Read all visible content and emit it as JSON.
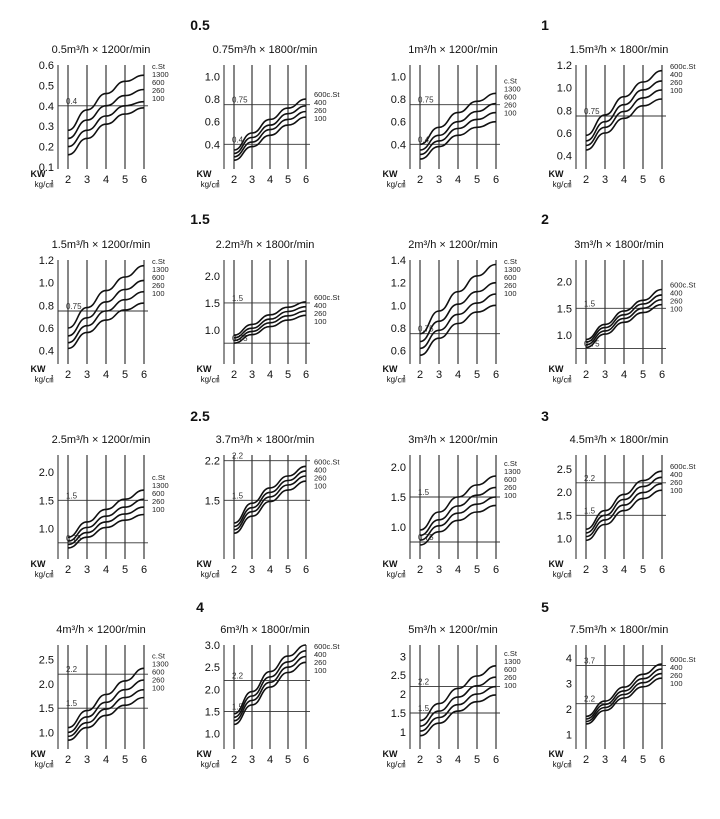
{
  "charts_sheet": {
    "kw_label": "KW",
    "pressure_unit": "kg/㎠"
  },
  "chart_data": [
    {
      "group": "0.5",
      "type": "line",
      "title": "0.5m³/h × 1200r/min",
      "x": [
        2,
        3,
        4,
        5,
        6
      ],
      "ylim": [
        0.1,
        0.6
      ],
      "yticks": [
        "0.1",
        "0.2",
        "0.3",
        "0.4",
        "0.5",
        "0.6"
      ],
      "ref_lines": [
        0.4
      ],
      "ref_labels": [
        "0.4"
      ],
      "series_labels": [
        "c.St",
        "1300",
        "600",
        "260",
        "100"
      ],
      "series": [
        {
          "name": "1300",
          "values": [
            0.28,
            0.38,
            0.46,
            0.52,
            0.55
          ]
        },
        {
          "name": "600",
          "values": [
            0.24,
            0.33,
            0.4,
            0.45,
            0.48
          ]
        },
        {
          "name": "260",
          "values": [
            0.2,
            0.28,
            0.35,
            0.4,
            0.42
          ]
        },
        {
          "name": "100",
          "values": [
            0.16,
            0.24,
            0.31,
            0.36,
            0.39
          ]
        }
      ]
    },
    {
      "group": "0.5",
      "type": "line",
      "title": "0.75m³/h × 1800r/min",
      "x": [
        2,
        3,
        4,
        5,
        6
      ],
      "ylim": [
        0.2,
        1.1
      ],
      "yticks": [
        "",
        "0.4",
        "0.6",
        "0.8",
        "1.0"
      ],
      "ref_lines": [
        0.75,
        0.4
      ],
      "ref_labels": [
        "0.75",
        "0.4"
      ],
      "series_labels": [
        "600c.St",
        "400",
        "260",
        "100"
      ],
      "series": [
        {
          "name": "600",
          "values": [
            0.35,
            0.5,
            0.62,
            0.72,
            0.8
          ]
        },
        {
          "name": "400",
          "values": [
            0.32,
            0.46,
            0.57,
            0.67,
            0.74
          ]
        },
        {
          "name": "260",
          "values": [
            0.29,
            0.42,
            0.53,
            0.62,
            0.69
          ]
        },
        {
          "name": "100",
          "values": [
            0.26,
            0.38,
            0.48,
            0.57,
            0.64
          ]
        }
      ]
    },
    {
      "group": "1",
      "type": "line",
      "title": "1m³/h × 1200r/min",
      "x": [
        2,
        3,
        4,
        5,
        6
      ],
      "ylim": [
        0.2,
        1.1
      ],
      "yticks": [
        "0.4",
        "0.6",
        "0.8",
        "1.0"
      ],
      "ref_lines": [
        0.75,
        0.4
      ],
      "ref_labels": [
        "0.75",
        "0.4"
      ],
      "series_labels": [
        "c.St",
        "1300",
        "600",
        "260",
        "100"
      ],
      "series": [
        {
          "name": "1300",
          "values": [
            0.4,
            0.55,
            0.68,
            0.78,
            0.85
          ]
        },
        {
          "name": "600",
          "values": [
            0.35,
            0.48,
            0.6,
            0.69,
            0.76
          ]
        },
        {
          "name": "260",
          "values": [
            0.31,
            0.43,
            0.54,
            0.62,
            0.68
          ]
        },
        {
          "name": "100",
          "values": [
            0.27,
            0.38,
            0.48,
            0.55,
            0.6
          ]
        }
      ]
    },
    {
      "group": "1",
      "type": "line",
      "title": "1.5m³/h × 1800r/min",
      "x": [
        2,
        3,
        4,
        5,
        6
      ],
      "ylim": [
        0.3,
        1.2
      ],
      "yticks": [
        "0.4",
        "0.6",
        "0.8",
        "1.0",
        "1.2"
      ],
      "ref_lines": [
        0.75
      ],
      "ref_labels": [
        "0.75"
      ],
      "series_labels": [
        "600c.St",
        "400",
        "260",
        "100"
      ],
      "series": [
        {
          "name": "600",
          "values": [
            0.58,
            0.76,
            0.92,
            1.05,
            1.15
          ]
        },
        {
          "name": "400",
          "values": [
            0.53,
            0.7,
            0.85,
            0.98,
            1.06
          ]
        },
        {
          "name": "260",
          "values": [
            0.49,
            0.65,
            0.79,
            0.91,
            0.98
          ]
        },
        {
          "name": "100",
          "values": [
            0.45,
            0.6,
            0.73,
            0.84,
            0.9
          ]
        }
      ]
    },
    {
      "group": "1.5",
      "type": "line",
      "title": "1.5m³/h × 1200r/min",
      "x": [
        2,
        3,
        4,
        5,
        6
      ],
      "ylim": [
        0.3,
        1.2
      ],
      "yticks": [
        "0.4",
        "0.6",
        "0.8",
        "1.0",
        "1.2"
      ],
      "ref_lines": [
        0.75
      ],
      "ref_labels": [
        "0.75"
      ],
      "series_labels": [
        "c.St",
        "1300",
        "600",
        "260",
        "100"
      ],
      "series": [
        {
          "name": "1300",
          "values": [
            0.6,
            0.78,
            0.93,
            1.05,
            1.15
          ]
        },
        {
          "name": "600",
          "values": [
            0.53,
            0.69,
            0.83,
            0.94,
            1.02
          ]
        },
        {
          "name": "260",
          "values": [
            0.47,
            0.62,
            0.75,
            0.85,
            0.92
          ]
        },
        {
          "name": "100",
          "values": [
            0.42,
            0.56,
            0.67,
            0.76,
            0.82
          ]
        }
      ]
    },
    {
      "group": "1.5",
      "type": "line",
      "title": "2.2m³/h × 1800r/min",
      "x": [
        2,
        3,
        4,
        5,
        6
      ],
      "ylim": [
        0.4,
        2.3
      ],
      "yticks": [
        "1.0",
        "1.5",
        "2.0"
      ],
      "ref_lines": [
        1.5,
        0.75
      ],
      "ref_labels": [
        "1.5",
        "0.75"
      ],
      "series_labels": [
        "600c.St",
        "400",
        "260",
        "100"
      ],
      "series": [
        {
          "name": "600",
          "values": [
            0.9,
            1.1,
            1.28,
            1.42,
            1.52
          ]
        },
        {
          "name": "400",
          "values": [
            0.85,
            1.03,
            1.2,
            1.34,
            1.43
          ]
        },
        {
          "name": "260",
          "values": [
            0.8,
            0.97,
            1.13,
            1.26,
            1.35
          ]
        },
        {
          "name": "100",
          "values": [
            0.75,
            0.91,
            1.06,
            1.18,
            1.27
          ]
        }
      ]
    },
    {
      "group": "2",
      "type": "line",
      "title": "2m³/h × 1200r/min",
      "x": [
        2,
        3,
        4,
        5,
        6
      ],
      "ylim": [
        0.5,
        1.4
      ],
      "yticks": [
        "0.6",
        "0.8",
        "1.0",
        "1.2",
        "1.4"
      ],
      "ref_lines": [
        0.75
      ],
      "ref_labels": [
        "0.75"
      ],
      "series_labels": [
        "c.St",
        "1300",
        "600",
        "260",
        "100"
      ],
      "series": [
        {
          "name": "1300",
          "values": [
            0.75,
            0.95,
            1.12,
            1.26,
            1.36
          ]
        },
        {
          "name": "600",
          "values": [
            0.68,
            0.86,
            1.01,
            1.12,
            1.2
          ]
        },
        {
          "name": "260",
          "values": [
            0.62,
            0.78,
            0.92,
            1.02,
            1.1
          ]
        },
        {
          "name": "100",
          "values": [
            0.56,
            0.71,
            0.84,
            0.94,
            1.0
          ]
        }
      ]
    },
    {
      "group": "2",
      "type": "line",
      "title": "3m³/h × 1800r/min",
      "x": [
        2,
        3,
        4,
        5,
        6
      ],
      "ylim": [
        0.5,
        2.4
      ],
      "yticks": [
        "1.0",
        "1.5",
        "2.0"
      ],
      "ref_lines": [
        1.5,
        0.75
      ],
      "ref_labels": [
        "1.5",
        "0.75"
      ],
      "series_labels": [
        "600c.St",
        "400",
        "260",
        "100"
      ],
      "series": [
        {
          "name": "600",
          "values": [
            0.92,
            1.2,
            1.45,
            1.65,
            1.85
          ]
        },
        {
          "name": "400",
          "values": [
            0.87,
            1.14,
            1.38,
            1.58,
            1.75
          ]
        },
        {
          "name": "260",
          "values": [
            0.82,
            1.08,
            1.31,
            1.5,
            1.66
          ]
        },
        {
          "name": "100",
          "values": [
            0.77,
            1.02,
            1.24,
            1.42,
            1.57
          ]
        }
      ]
    },
    {
      "group": "2.5",
      "type": "line",
      "title": "2.5m³/h × 1200r/min",
      "x": [
        2,
        3,
        4,
        5,
        6
      ],
      "ylim": [
        0.5,
        2.3
      ],
      "yticks": [
        "1.0",
        "1.5",
        "2.0"
      ],
      "ref_lines": [
        1.5,
        0.75
      ],
      "ref_labels": [
        "1.5",
        "0.75"
      ],
      "series_labels": [
        "c.St",
        "1300",
        "600",
        "260",
        "100"
      ],
      "series": [
        {
          "name": "1300",
          "values": [
            0.85,
            1.12,
            1.34,
            1.52,
            1.68
          ]
        },
        {
          "name": "600",
          "values": [
            0.78,
            1.02,
            1.22,
            1.38,
            1.52
          ]
        },
        {
          "name": "260",
          "values": [
            0.72,
            0.93,
            1.12,
            1.26,
            1.38
          ]
        },
        {
          "name": "100",
          "values": [
            0.66,
            0.85,
            1.02,
            1.15,
            1.25
          ]
        }
      ]
    },
    {
      "group": "2.5",
      "type": "line",
      "title": "3.7m³/h × 1800r/min",
      "x": [
        2,
        3,
        4,
        5,
        6
      ],
      "ylim": [
        0.5,
        2.3
      ],
      "yticks": [
        "1.5",
        "2.2"
      ],
      "ref_lines": [
        2.2,
        1.5
      ],
      "ref_labels": [
        "2.2",
        "1.5"
      ],
      "series_labels": [
        "600c.St",
        "400",
        "260",
        "100"
      ],
      "series": [
        {
          "name": "600",
          "values": [
            1.1,
            1.45,
            1.72,
            1.93,
            2.1
          ]
        },
        {
          "name": "400",
          "values": [
            1.04,
            1.37,
            1.64,
            1.85,
            2.02
          ]
        },
        {
          "name": "260",
          "values": [
            0.98,
            1.3,
            1.56,
            1.77,
            1.93
          ]
        },
        {
          "name": "100",
          "values": [
            0.92,
            1.22,
            1.48,
            1.68,
            1.84
          ]
        }
      ]
    },
    {
      "group": "3",
      "type": "line",
      "title": "3m³/h × 1200r/min",
      "x": [
        2,
        3,
        4,
        5,
        6
      ],
      "ylim": [
        0.5,
        2.2
      ],
      "yticks": [
        "1.0",
        "1.5",
        "2.0"
      ],
      "ref_lines": [
        1.5,
        0.75
      ],
      "ref_labels": [
        "1.5",
        "0.75"
      ],
      "series_labels": [
        "c.St",
        "1300",
        "600",
        "260",
        "100"
      ],
      "series": [
        {
          "name": "1300",
          "values": [
            0.95,
            1.25,
            1.5,
            1.7,
            1.85
          ]
        },
        {
          "name": "600",
          "values": [
            0.86,
            1.12,
            1.35,
            1.53,
            1.66
          ]
        },
        {
          "name": "260",
          "values": [
            0.78,
            1.02,
            1.23,
            1.38,
            1.5
          ]
        },
        {
          "name": "100",
          "values": [
            0.7,
            0.92,
            1.11,
            1.25,
            1.36
          ]
        }
      ]
    },
    {
      "group": "3",
      "type": "line",
      "title": "4.5m³/h × 1800r/min",
      "x": [
        2,
        3,
        4,
        5,
        6
      ],
      "ylim": [
        0.6,
        2.8
      ],
      "yticks": [
        "1.0",
        "1.5",
        "2.0",
        "2.5"
      ],
      "ref_lines": [
        2.2,
        1.5
      ],
      "ref_labels": [
        "2.2",
        "1.5"
      ],
      "series_labels": [
        "600c.St",
        "400",
        "260",
        "100"
      ],
      "series": [
        {
          "name": "600",
          "values": [
            1.2,
            1.6,
            1.95,
            2.25,
            2.45
          ]
        },
        {
          "name": "400",
          "values": [
            1.12,
            1.5,
            1.84,
            2.12,
            2.32
          ]
        },
        {
          "name": "260",
          "values": [
            1.04,
            1.4,
            1.72,
            1.99,
            2.18
          ]
        },
        {
          "name": "100",
          "values": [
            0.96,
            1.3,
            1.6,
            1.86,
            2.04
          ]
        }
      ]
    },
    {
      "group": "4",
      "type": "line",
      "title": "4m³/h × 1200r/min",
      "x": [
        2,
        3,
        4,
        5,
        6
      ],
      "ylim": [
        0.7,
        2.8
      ],
      "yticks": [
        "1.0",
        "1.5",
        "2.0",
        "2.5"
      ],
      "ref_lines": [
        2.2,
        1.5
      ],
      "ref_labels": [
        "2.2",
        "1.5"
      ],
      "series_labels": [
        "c.St",
        "1300",
        "600",
        "260",
        "100"
      ],
      "series": [
        {
          "name": "1300",
          "values": [
            1.1,
            1.45,
            1.78,
            2.06,
            2.32
          ]
        },
        {
          "name": "600",
          "values": [
            1.0,
            1.32,
            1.62,
            1.88,
            2.08
          ]
        },
        {
          "name": "260",
          "values": [
            0.92,
            1.2,
            1.48,
            1.72,
            1.88
          ]
        },
        {
          "name": "100",
          "values": [
            0.84,
            1.1,
            1.35,
            1.56,
            1.72
          ]
        }
      ]
    },
    {
      "group": "4",
      "type": "line",
      "title": "6m³/h × 1800r/min",
      "x": [
        2,
        3,
        4,
        5,
        6
      ],
      "ylim": [
        0.7,
        3.0
      ],
      "yticks": [
        "1.0",
        "1.5",
        "2.0",
        "2.5",
        "3.0"
      ],
      "ref_lines": [
        2.2,
        1.5
      ],
      "ref_labels": [
        "2.2",
        "1.5"
      ],
      "series_labels": [
        "600c.St",
        "400",
        "260",
        "100"
      ],
      "series": [
        {
          "name": "600",
          "values": [
            1.45,
            1.95,
            2.4,
            2.75,
            3.0
          ]
        },
        {
          "name": "400",
          "values": [
            1.37,
            1.85,
            2.28,
            2.62,
            2.87
          ]
        },
        {
          "name": "260",
          "values": [
            1.29,
            1.75,
            2.16,
            2.5,
            2.74
          ]
        },
        {
          "name": "100",
          "values": [
            1.21,
            1.65,
            2.05,
            2.38,
            2.61
          ]
        }
      ]
    },
    {
      "group": "5",
      "type": "line",
      "title": "5m³/h × 1200r/min",
      "x": [
        2,
        3,
        4,
        5,
        6
      ],
      "ylim": [
        0.6,
        3.3
      ],
      "yticks": [
        "1",
        "1.5",
        "2",
        "2.5",
        "3"
      ],
      "ref_lines": [
        2.2,
        1.5
      ],
      "ref_labels": [
        "2.2",
        "1.5"
      ],
      "series_labels": [
        "c.St",
        "1300",
        "600",
        "260",
        "100"
      ],
      "series": [
        {
          "name": "1300",
          "values": [
            1.3,
            1.75,
            2.15,
            2.48,
            2.75
          ]
        },
        {
          "name": "600",
          "values": [
            1.15,
            1.55,
            1.92,
            2.22,
            2.45
          ]
        },
        {
          "name": "260",
          "values": [
            1.02,
            1.38,
            1.72,
            2.0,
            2.2
          ]
        },
        {
          "name": "100",
          "values": [
            0.9,
            1.23,
            1.55,
            1.8,
            1.98
          ]
        }
      ]
    },
    {
      "group": "5",
      "type": "line",
      "title": "7.5m³/h × 1800r/min",
      "x": [
        2,
        3,
        4,
        5,
        6
      ],
      "ylim": [
        0.5,
        4.5
      ],
      "yticks": [
        "1",
        "2",
        "3",
        "4"
      ],
      "ref_lines": [
        3.7,
        2.2
      ],
      "ref_labels": [
        "3.7",
        "2.2"
      ],
      "series_labels": [
        "600c.St",
        "400",
        "260",
        "100"
      ],
      "series": [
        {
          "name": "600",
          "values": [
            1.7,
            2.3,
            2.85,
            3.35,
            3.75
          ]
        },
        {
          "name": "400",
          "values": [
            1.6,
            2.17,
            2.7,
            3.18,
            3.56
          ]
        },
        {
          "name": "260",
          "values": [
            1.5,
            2.05,
            2.56,
            3.02,
            3.38
          ]
        },
        {
          "name": "100",
          "values": [
            1.4,
            1.93,
            2.42,
            2.86,
            3.2
          ]
        }
      ]
    }
  ]
}
